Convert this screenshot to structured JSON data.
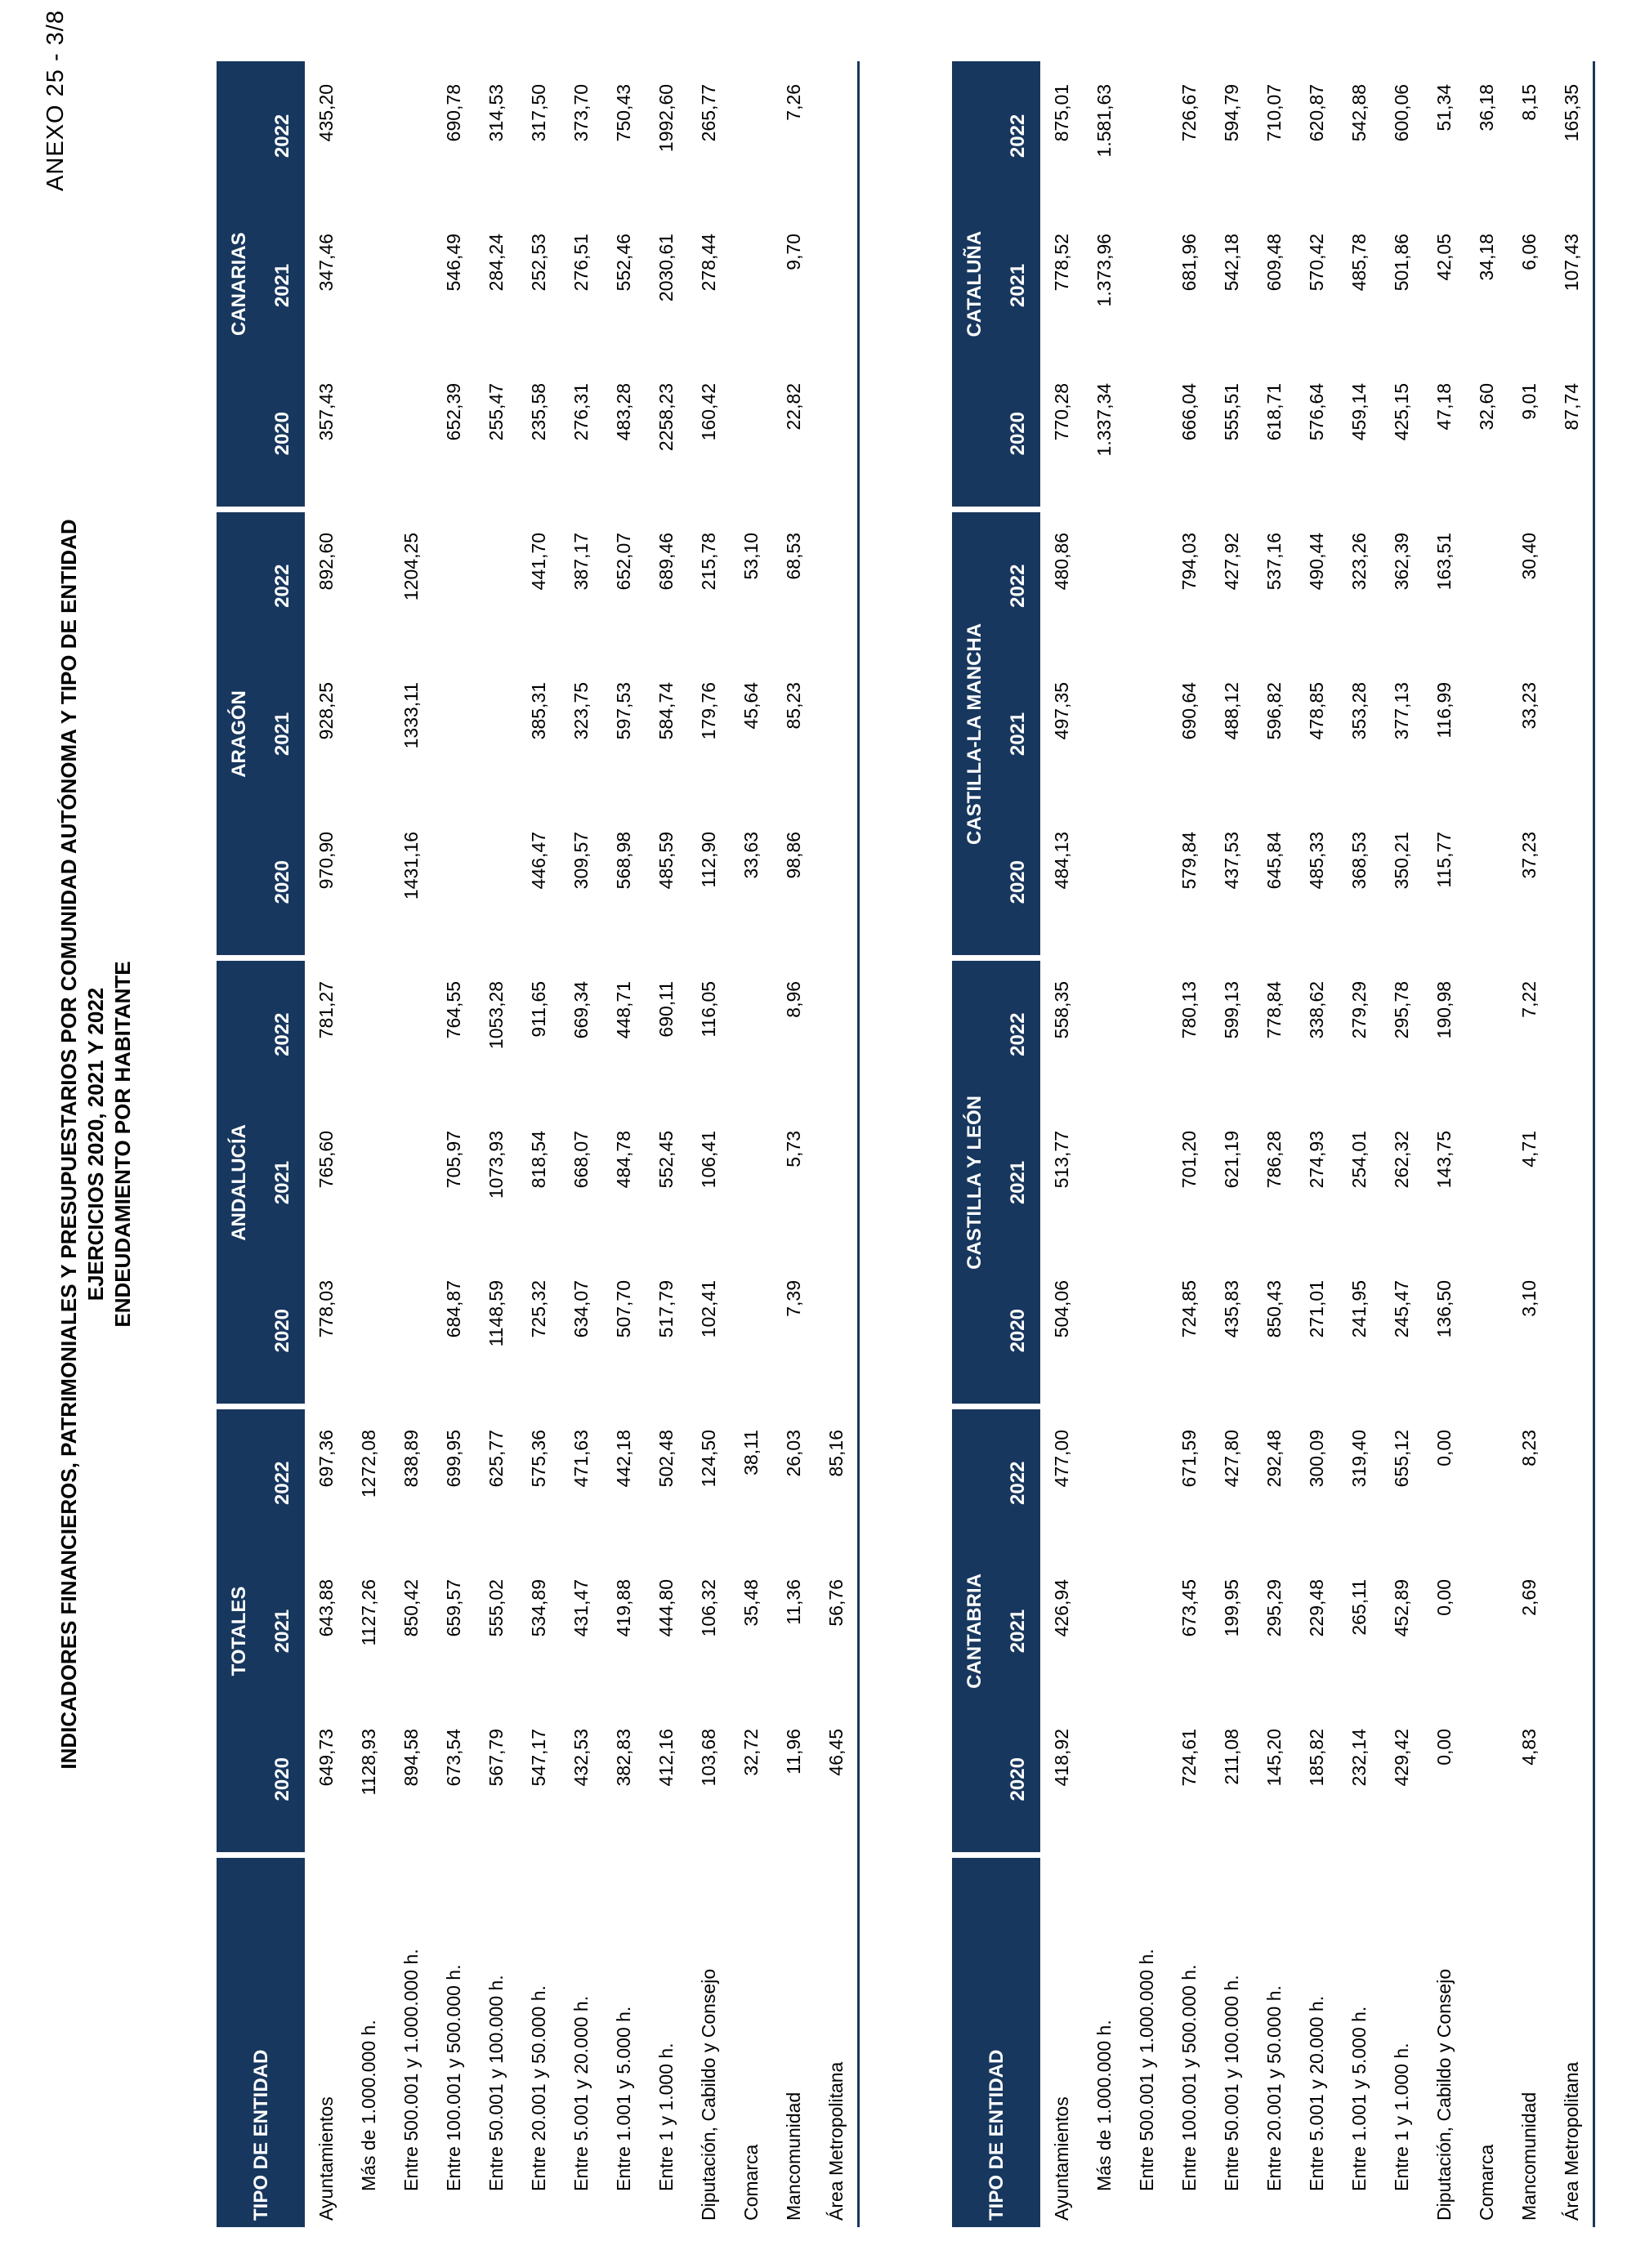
{
  "page": {
    "annex": "ANEXO 25 - 3/8",
    "title1": "INDICADORES FINANCIEROS, PATRIMONIALES Y PRESUPUESTARIOS POR COMUNIDAD AUTÓNOMA Y TIPO DE ENTIDAD",
    "title2": "EJERCICIOS 2020, 2021 Y 2022",
    "title3": "ENDEUDAMIENTO POR HABITANTE"
  },
  "colors": {
    "header_bg": "#17375e",
    "rule": "#17375e",
    "header_text": "#ffffff"
  },
  "header": {
    "entity_col": "TIPO DE ENTIDAD",
    "years": [
      "2020",
      "2021",
      "2022"
    ]
  },
  "row_labels": [
    {
      "label": "Ayuntamientos",
      "indent": false
    },
    {
      "label": "Más de 1.000.000 h.",
      "indent": true
    },
    {
      "label": "Entre 500.001 y 1.000.000 h.",
      "indent": true
    },
    {
      "label": "Entre 100.001 y 500.000 h.",
      "indent": true
    },
    {
      "label": "Entre 50.001 y 100.000 h.",
      "indent": true
    },
    {
      "label": "Entre 20.001 y 50.000 h.",
      "indent": true
    },
    {
      "label": "Entre 5.001 y 20.000 h.",
      "indent": true
    },
    {
      "label": "Entre 1.001 y 5.000 h.",
      "indent": true
    },
    {
      "label": "Entre 1 y 1.000 h.",
      "indent": true
    },
    {
      "label": "Diputación, Cabildo y Consejo",
      "indent": false
    },
    {
      "label": "Comarca",
      "indent": false
    },
    {
      "label": "Mancomunidad",
      "indent": false
    },
    {
      "label": "Área Metropolitana",
      "indent": false
    }
  ],
  "tables": [
    {
      "groups": [
        "TOTALES",
        "ANDALUCÍA",
        "ARAGÓN",
        "CANARIAS"
      ],
      "rows": [
        [
          "649,73",
          "643,88",
          "697,36",
          "778,03",
          "765,60",
          "781,27",
          "970,90",
          "928,25",
          "892,60",
          "357,43",
          "347,46",
          "435,20"
        ],
        [
          "1128,93",
          "1127,26",
          "1272,08",
          "",
          "",
          "",
          "",
          "",
          "",
          "",
          "",
          ""
        ],
        [
          "894,58",
          "850,42",
          "838,89",
          "",
          "",
          "",
          "1431,16",
          "1333,11",
          "1204,25",
          "",
          "",
          ""
        ],
        [
          "673,54",
          "659,57",
          "699,95",
          "684,87",
          "705,97",
          "764,55",
          "",
          "",
          "",
          "652,39",
          "546,49",
          "690,78"
        ],
        [
          "567,79",
          "555,02",
          "625,77",
          "1148,59",
          "1073,93",
          "1053,28",
          "",
          "",
          "",
          "255,47",
          "284,24",
          "314,53"
        ],
        [
          "547,17",
          "534,89",
          "575,36",
          "725,32",
          "818,54",
          "911,65",
          "446,47",
          "385,31",
          "441,70",
          "235,58",
          "252,53",
          "317,50"
        ],
        [
          "432,53",
          "431,47",
          "471,63",
          "634,07",
          "668,07",
          "669,34",
          "309,57",
          "323,75",
          "387,17",
          "276,31",
          "276,51",
          "373,70"
        ],
        [
          "382,83",
          "419,88",
          "442,18",
          "507,70",
          "484,78",
          "448,71",
          "568,98",
          "597,53",
          "652,07",
          "483,28",
          "552,46",
          "750,43"
        ],
        [
          "412,16",
          "444,80",
          "502,48",
          "517,79",
          "552,45",
          "690,11",
          "485,59",
          "584,74",
          "689,46",
          "2258,23",
          "2030,61",
          "1992,60"
        ],
        [
          "103,68",
          "106,32",
          "124,50",
          "102,41",
          "106,41",
          "116,05",
          "112,90",
          "179,76",
          "215,78",
          "160,42",
          "278,44",
          "265,77"
        ],
        [
          "32,72",
          "35,48",
          "38,11",
          "",
          "",
          "",
          "33,63",
          "45,64",
          "53,10",
          "",
          "",
          ""
        ],
        [
          "11,96",
          "11,36",
          "26,03",
          "7,39",
          "5,73",
          "8,96",
          "98,86",
          "85,23",
          "68,53",
          "22,82",
          "9,70",
          "7,26"
        ],
        [
          "46,45",
          "56,76",
          "85,16",
          "",
          "",
          "",
          "",
          "",
          "",
          "",
          "",
          ""
        ]
      ]
    },
    {
      "groups": [
        "CANTABRIA",
        "CASTILLA Y LEÓN",
        "CASTILLA-LA MANCHA",
        "CATALUÑA"
      ],
      "rows": [
        [
          "418,92",
          "426,94",
          "477,00",
          "504,06",
          "513,77",
          "558,35",
          "484,13",
          "497,35",
          "480,86",
          "770,28",
          "778,52",
          "875,01"
        ],
        [
          "",
          "",
          "",
          "",
          "",
          "",
          "",
          "",
          "",
          "1.337,34",
          "1.373,96",
          "1.581,63"
        ],
        [
          "",
          "",
          "",
          "",
          "",
          "",
          "",
          "",
          "",
          "",
          "",
          ""
        ],
        [
          "724,61",
          "673,45",
          "671,59",
          "724,85",
          "701,20",
          "780,13",
          "579,84",
          "690,64",
          "794,03",
          "666,04",
          "681,96",
          "726,67"
        ],
        [
          "211,08",
          "199,95",
          "427,80",
          "435,83",
          "621,19",
          "599,13",
          "437,53",
          "488,12",
          "427,92",
          "555,51",
          "542,18",
          "594,79"
        ],
        [
          "145,20",
          "295,29",
          "292,48",
          "850,43",
          "786,28",
          "778,84",
          "645,84",
          "596,82",
          "537,16",
          "618,71",
          "609,48",
          "710,07"
        ],
        [
          "185,82",
          "229,48",
          "300,09",
          "271,01",
          "274,93",
          "338,62",
          "485,33",
          "478,85",
          "490,44",
          "576,64",
          "570,42",
          "620,87"
        ],
        [
          "232,14",
          "265,11",
          "319,40",
          "241,95",
          "254,01",
          "279,29",
          "368,53",
          "353,28",
          "323,26",
          "459,14",
          "485,78",
          "542,88"
        ],
        [
          "429,42",
          "452,89",
          "655,12",
          "245,47",
          "262,32",
          "295,78",
          "350,21",
          "377,13",
          "362,39",
          "425,15",
          "501,86",
          "600,06"
        ],
        [
          "0,00",
          "0,00",
          "0,00",
          "136,50",
          "143,75",
          "190,98",
          "115,77",
          "116,99",
          "163,51",
          "47,18",
          "42,05",
          "51,34"
        ],
        [
          "",
          "",
          "",
          "",
          "",
          "",
          "",
          "",
          "",
          "32,60",
          "34,18",
          "36,18"
        ],
        [
          "4,83",
          "2,69",
          "8,23",
          "3,10",
          "4,71",
          "7,22",
          "37,23",
          "33,23",
          "30,40",
          "9,01",
          "6,06",
          "8,15"
        ],
        [
          "",
          "",
          "",
          "",
          "",
          "",
          "",
          "",
          "",
          "87,74",
          "107,43",
          "165,35"
        ]
      ]
    }
  ]
}
